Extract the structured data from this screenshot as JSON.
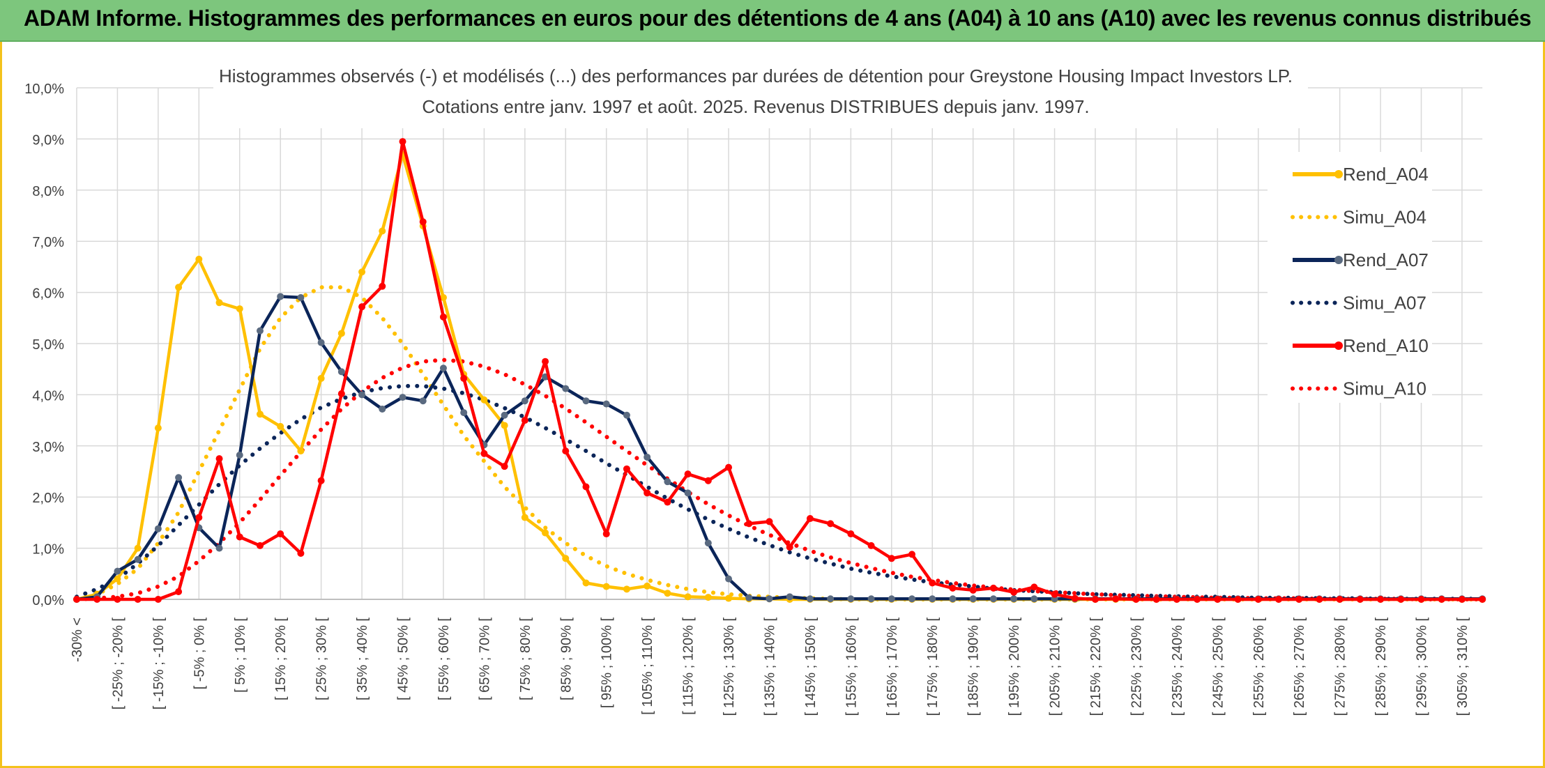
{
  "header": {
    "title": "ADAM Informe. Histogrammes des performances en euros pour des détentions de 4 ans (A04) à 10 ans (A10) avec les revenus connus distribués"
  },
  "colors": {
    "header_bg": "#7dc67d",
    "frame": "#f3c21c",
    "A04": "#ffc000",
    "A07": "#0b2559",
    "A10": "#ff0000",
    "grid": "#d9d9d9"
  },
  "chart_data": {
    "type": "line",
    "title": "Histogrammes observés (-) et modélisés (...) des performances par durées de détention pour Greystone Housing Impact Investors LP.",
    "subtitle": "Cotations entre janv. 1997 et août. 2025. Revenus DISTRIBUES depuis janv. 1997.",
    "ylim": [
      0,
      10
    ],
    "yticks": [
      "0,0%",
      "1,0%",
      "2,0%",
      "3,0%",
      "4,0%",
      "5,0%",
      "6,0%",
      "7,0%",
      "8,0%",
      "9,0%",
      "10,0%"
    ],
    "x_labels": [
      "-30% <",
      "[ -25% ; -20% [",
      "[ -15% ; -10% [",
      "[ -5% ; 0% [",
      "[ 5% ; 10% [",
      "[ 15% ; 20% [",
      "[ 25% ; 30% [",
      "[ 35% ; 40% [",
      "[ 45% ; 50% [",
      "[ 55% ; 60% [",
      "[ 65% ; 70% [",
      "[ 75% ; 80% [",
      "[ 85% ; 90% [",
      "[ 95% ; 100% [",
      "[ 105% ; 110% [",
      "[ 115% ; 120% [",
      "[ 125% ; 130% [",
      "[ 135% ; 140% [",
      "[ 145% ; 150% [",
      "[ 155% ; 160% [",
      "[ 165% ; 170% [",
      "[ 175% ; 180% [",
      "[ 185% ; 190% [",
      "[ 195% ; 200% [",
      "[ 205% ; 210% [",
      "[ 215% ; 220% [",
      "[ 225% ; 230% [",
      "[ 235% ; 240% [",
      "[ 245% ; 250% [",
      "[ 255% ; 260% [",
      "[ 265% ; 270% [",
      "[ 275% ; 280% [",
      "[ 285% ; 290% [",
      "[ 295% ; 300% [",
      "[ 305% ; 310% ["
    ],
    "legend_position": "right",
    "grid": true,
    "series": [
      {
        "name": "Rend_A04",
        "style": "solid",
        "color": "#ffc000",
        "values": [
          0,
          0.1,
          0.4,
          1.0,
          3.35,
          6.1,
          6.65,
          5.8,
          5.68,
          3.62,
          3.38,
          2.9,
          4.32,
          5.2,
          6.4,
          7.2,
          8.7,
          7.3,
          5.9,
          4.4,
          3.9,
          3.4,
          1.6,
          1.3,
          0.8,
          0.32,
          0.25,
          0.2,
          0.26,
          0.12,
          0.05,
          0.04,
          0.02,
          0.01,
          0.01,
          0.0,
          0.0,
          0.0,
          0.0,
          0.0,
          0.0,
          0.0,
          0.0,
          0.0,
          0.0,
          0.0,
          0.0,
          0.0,
          0.0,
          0.0,
          0.0,
          0.0,
          0.0,
          0.0,
          0.0,
          0.0,
          0.0,
          0.0,
          0.0,
          0.0,
          0.0,
          0.0,
          0.0,
          0.0,
          0.0,
          0.0,
          0.0,
          0.0,
          0.0,
          0.0
        ]
      },
      {
        "name": "Simu_A04",
        "style": "dotted",
        "color": "#ffc000",
        "values": [
          0.0,
          0.1,
          0.3,
          0.6,
          1.1,
          1.7,
          2.5,
          3.3,
          4.1,
          4.9,
          5.5,
          5.9,
          6.1,
          6.1,
          5.9,
          5.5,
          5.0,
          4.4,
          3.8,
          3.2,
          2.7,
          2.2,
          1.8,
          1.4,
          1.1,
          0.85,
          0.65,
          0.5,
          0.38,
          0.28,
          0.2,
          0.14,
          0.1,
          0.07,
          0.05,
          0.03,
          0.02,
          0.01,
          0.0,
          0.0,
          0.0,
          0.0,
          0.0,
          0.0,
          0.0,
          0.0,
          0.0,
          0.0,
          0.0,
          0.0,
          0.0,
          0.0,
          0.0,
          0.0,
          0.0,
          0.0,
          0.0,
          0.0,
          0.0,
          0.0,
          0.0,
          0.0,
          0.0,
          0.0,
          0.0,
          0.0,
          0.0,
          0.0,
          0.0,
          0.0
        ]
      },
      {
        "name": "Rend_A07",
        "style": "solid",
        "color": "#0b2559",
        "values": [
          0,
          0.05,
          0.55,
          0.78,
          1.38,
          2.38,
          1.4,
          1.0,
          2.82,
          5.25,
          5.92,
          5.9,
          5.02,
          4.45,
          4.0,
          3.72,
          3.95,
          3.88,
          4.52,
          3.65,
          3.02,
          3.6,
          3.88,
          4.35,
          4.12,
          3.88,
          3.82,
          3.6,
          2.78,
          2.3,
          2.08,
          1.1,
          0.4,
          0.03,
          0.01,
          0.05,
          0.01,
          0.01,
          0.01,
          0.01,
          0.01,
          0.01,
          0.01,
          0.01,
          0.01,
          0.01,
          0.01,
          0.01,
          0.01,
          0.01,
          0.01,
          0.01,
          0.01,
          0.01,
          0.01,
          0.01,
          0.01,
          0.01,
          0.01,
          0.01,
          0.01,
          0.01,
          0.01,
          0.01,
          0.01,
          0.01,
          0.01,
          0.01,
          0.01,
          0.01
        ]
      },
      {
        "name": "Simu_A07",
        "style": "dotted",
        "color": "#0b2559",
        "values": [
          0.05,
          0.2,
          0.4,
          0.7,
          1.05,
          1.45,
          1.85,
          2.25,
          2.62,
          2.95,
          3.25,
          3.52,
          3.75,
          3.92,
          4.05,
          4.13,
          4.17,
          4.17,
          4.12,
          4.03,
          3.9,
          3.74,
          3.56,
          3.35,
          3.13,
          2.9,
          2.66,
          2.43,
          2.2,
          1.97,
          1.76,
          1.56,
          1.38,
          1.21,
          1.06,
          0.92,
          0.8,
          0.7,
          0.6,
          0.52,
          0.45,
          0.39,
          0.33,
          0.29,
          0.25,
          0.21,
          0.18,
          0.16,
          0.14,
          0.12,
          0.1,
          0.09,
          0.08,
          0.07,
          0.06,
          0.05,
          0.05,
          0.04,
          0.03,
          0.03,
          0.03,
          0.02,
          0.02,
          0.02,
          0.01,
          0.01,
          0.01,
          0.01,
          0.01,
          0.01
        ]
      },
      {
        "name": "Rend_A10",
        "style": "solid",
        "color": "#ff0000",
        "values": [
          0,
          0,
          0,
          0,
          0,
          0.15,
          1.6,
          2.75,
          1.22,
          1.05,
          1.28,
          0.9,
          2.32,
          4.02,
          5.72,
          6.12,
          8.95,
          7.38,
          5.52,
          4.32,
          2.85,
          2.6,
          3.5,
          4.65,
          2.9,
          2.2,
          1.28,
          2.55,
          2.08,
          1.9,
          2.45,
          2.32,
          2.58,
          1.48,
          1.52,
          1.02,
          1.58,
          1.48,
          1.28,
          1.05,
          0.8,
          0.88,
          0.32,
          0.22,
          0.18,
          0.22,
          0.14,
          0.24,
          0.1,
          0.02,
          0.0,
          0.01,
          0.0,
          0.0,
          0.0,
          0.0,
          0.0,
          0.0,
          0.0,
          0.0,
          0.0,
          0.0,
          0.0,
          0.0,
          0.0,
          0.0,
          0.0,
          0.0,
          0.0,
          0.0
        ]
      },
      {
        "name": "Simu_A10",
        "style": "dotted",
        "color": "#ff0000",
        "values": [
          0.0,
          0.02,
          0.05,
          0.12,
          0.25,
          0.45,
          0.75,
          1.1,
          1.5,
          1.95,
          2.42,
          2.88,
          3.32,
          3.72,
          4.06,
          4.33,
          4.53,
          4.65,
          4.68,
          4.65,
          4.55,
          4.4,
          4.2,
          3.98,
          3.73,
          3.46,
          3.18,
          2.9,
          2.62,
          2.36,
          2.1,
          1.86,
          1.64,
          1.44,
          1.26,
          1.1,
          0.95,
          0.82,
          0.71,
          0.61,
          0.52,
          0.44,
          0.38,
          0.32,
          0.27,
          0.23,
          0.19,
          0.16,
          0.14,
          0.12,
          0.1,
          0.08,
          0.07,
          0.06,
          0.05,
          0.04,
          0.03,
          0.03,
          0.02,
          0.02,
          0.02,
          0.01,
          0.01,
          0.01,
          0.01,
          0.01,
          0.0,
          0.0,
          0.0,
          0.0
        ]
      }
    ]
  }
}
